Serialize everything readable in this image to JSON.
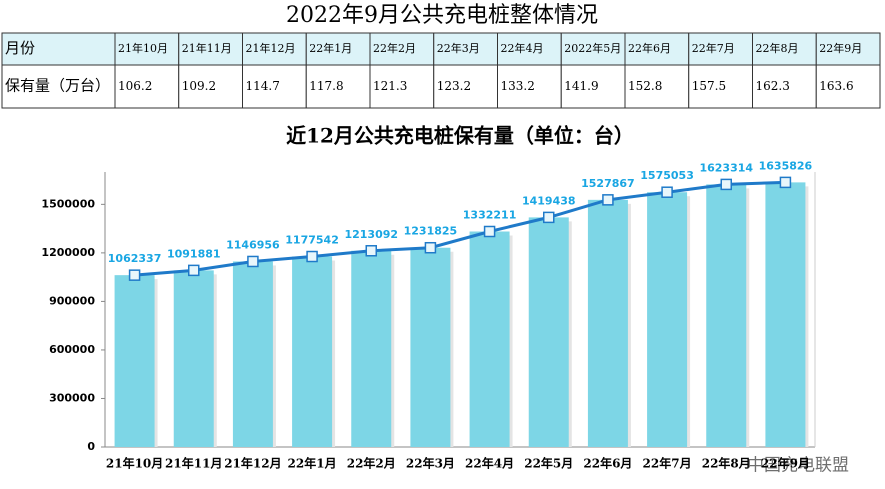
{
  "header": {
    "title": "2022年9月公共充电桩整体情况"
  },
  "table": {
    "rows": [
      [
        "月份",
        "21年10月",
        "21年11月",
        "21年12月",
        "22年1月",
        "22年2月",
        "22年3月",
        "22年4月",
        "2022年5月",
        "22年6月",
        "22年7月",
        "22年8月",
        "22年9月"
      ],
      [
        "保有量（万台）",
        106.2,
        109.2,
        114.7,
        117.8,
        121.3,
        123.2,
        133.2,
        141.9,
        152.8,
        157.5,
        162.3,
        163.6
      ]
    ]
  },
  "chart_data": {
    "type": "bar",
    "title": "近12月公共充电桩保有量（单位：台）",
    "categories": [
      "21年10月",
      "21年11月",
      "21年12月",
      "22年1月",
      "22年2月",
      "22年3月",
      "22年4月",
      "22年5月",
      "22年6月",
      "22年7月",
      "22年8月",
      "22年9月"
    ],
    "values": [
      1062337,
      1091881,
      1146956,
      1177542,
      1213092,
      1231825,
      1332211,
      1419438,
      1527867,
      1575053,
      1623314,
      1635826
    ],
    "color": "#7dd6e6",
    "line_color": "#1f7ac9",
    "label_color": "#19a6e3",
    "line_overlay": true,
    "ylim": [
      0,
      1700000
    ],
    "yticks": [
      0,
      300000,
      600000,
      900000,
      1200000,
      1500000
    ]
  },
  "watermark": "中国充电联盟"
}
